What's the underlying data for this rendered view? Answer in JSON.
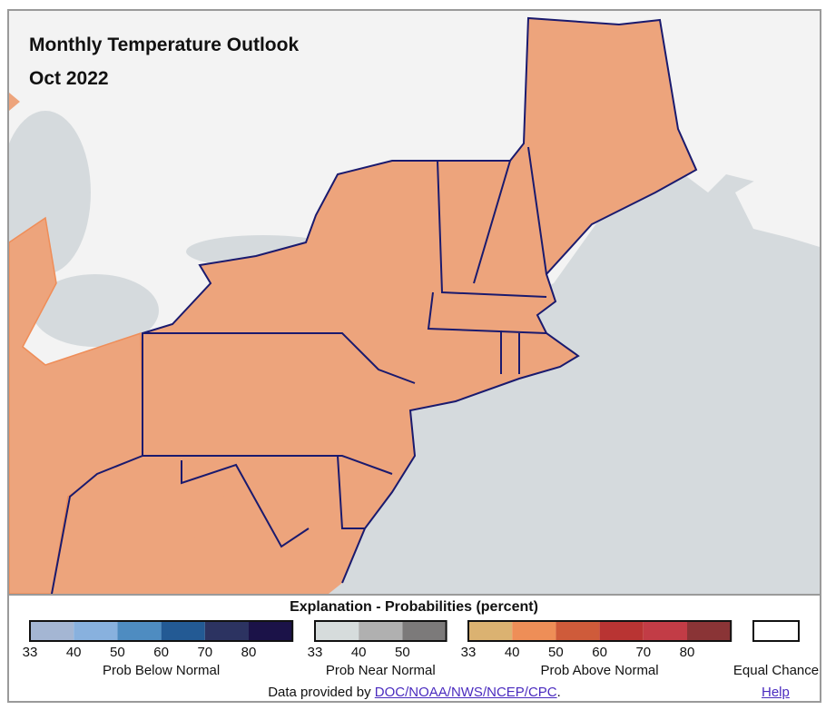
{
  "header": {
    "title": "Monthly Temperature Outlook",
    "subtitle": "Oct 2022"
  },
  "legend": {
    "title": "Explanation - Probabilities (percent)",
    "groups": [
      {
        "label": "Prob Below Normal",
        "ticks": [
          33,
          40,
          50,
          60,
          70,
          80
        ],
        "colors": [
          "#a4b6d3",
          "#88b1de",
          "#4e8cc1",
          "#235a94",
          "#2c3361",
          "#1b1248"
        ]
      },
      {
        "label": "Prob Near Normal",
        "ticks": [
          33,
          40,
          50
        ],
        "colors": [
          "#d6dcdc",
          "#b0b0b0",
          "#7c7a7a"
        ]
      },
      {
        "label": "Prob Above Normal",
        "ticks": [
          33,
          40,
          50,
          60,
          70,
          80
        ],
        "colors": [
          "#dbb271",
          "#ee8e57",
          "#cf5b3a",
          "#b93433",
          "#c23c46",
          "#8a3436"
        ]
      },
      {
        "label": "Equal Chance",
        "colors": [
          "#ffffff"
        ]
      }
    ]
  },
  "footer": {
    "text": "Data provided by ",
    "link": "DOC/NOAA/NWS/NCEP/CPC",
    "end": ".",
    "help": "Help"
  }
}
